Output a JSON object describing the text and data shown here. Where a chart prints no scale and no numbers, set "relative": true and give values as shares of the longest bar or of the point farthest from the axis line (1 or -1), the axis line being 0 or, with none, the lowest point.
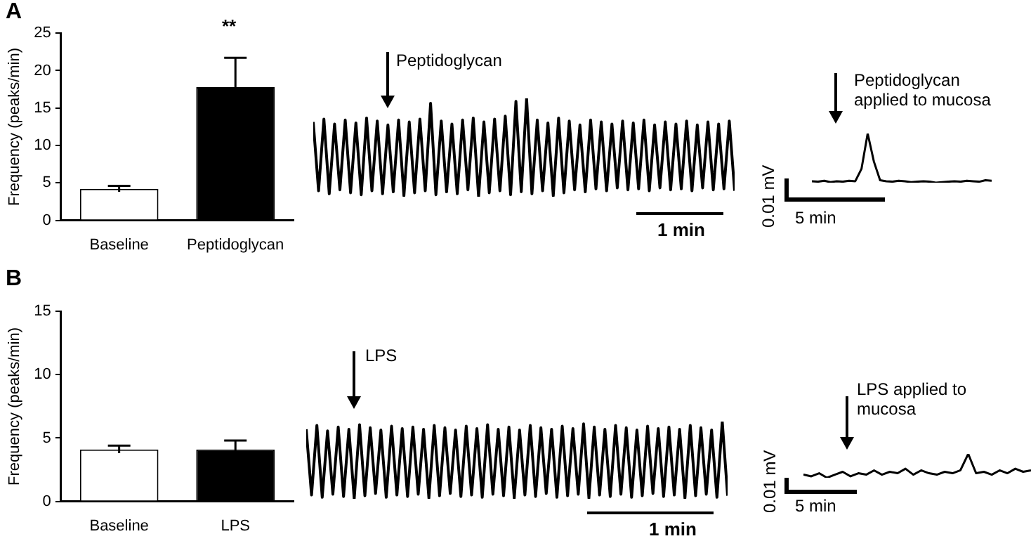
{
  "chart_data": [
    {
      "type": "bar",
      "title": "A",
      "ylabel": "Frequency (peaks/min)",
      "categories": [
        "Baseline",
        "Peptidoglycan"
      ],
      "values": [
        4.2,
        17.8
      ],
      "errors": [
        0.4,
        3.9
      ],
      "colors": [
        "#ffffff",
        "#000000"
      ],
      "ylim": [
        0,
        25
      ],
      "yticks": [
        0,
        5,
        10,
        15,
        20,
        25
      ],
      "annotations": [
        "**"
      ]
    },
    {
      "type": "line",
      "relative": true,
      "categories": [
        null,
        null,
        null,
        null,
        null,
        null,
        null,
        null,
        null,
        null,
        null,
        null,
        null,
        null,
        null,
        null,
        null,
        null,
        null,
        null,
        null,
        null,
        null,
        null,
        null,
        null,
        null,
        null,
        null,
        null,
        null,
        null,
        null,
        null,
        null,
        null,
        null,
        null,
        null,
        null,
        null,
        null,
        null,
        null,
        null,
        null,
        null,
        null,
        null,
        null,
        null,
        null,
        null,
        null,
        null,
        null,
        null,
        null,
        null,
        null,
        null,
        null,
        null,
        null,
        null,
        null,
        null,
        null,
        null,
        null,
        null,
        null,
        null,
        null,
        null,
        null,
        null,
        null,
        null,
        null
      ],
      "series": [
        {
          "color": "#000000",
          "values": [
            0.76,
            0.06,
            0.79,
            0.03,
            0.74,
            0.07,
            0.78,
            0.04,
            0.75,
            0.02,
            0.8,
            0.06,
            0.77,
            0.03,
            0.73,
            0.05,
            0.78,
            0.01,
            0.76,
            0.04,
            0.79,
            0.06,
            0.95,
            0.02,
            0.77,
            0.05,
            0.74,
            0.03,
            0.78,
            0.07,
            0.8,
            0,
            0.76,
            0.04,
            0.79,
            0.06,
            0.82,
            0.02,
            0.97,
            0.05,
            1,
            0.03,
            0.78,
            0.06,
            0.75,
            0.01,
            0.8,
            0.04,
            0.77,
            0.07,
            0.73,
            0.05,
            0.78,
            0.08,
            0.76,
            0.06,
            0.74,
            0.09,
            0.77,
            0.07,
            0.75,
            0.08,
            0.78,
            0.06,
            0.73,
            0.09,
            0.76,
            0.07,
            0.74,
            0.08,
            0.77,
            0.06,
            0.73,
            0.09,
            0.76,
            0.07,
            0.74,
            0.08,
            0.77,
            0.06
          ]
        }
      ],
      "annotations": [
        "Peptidoglycan",
        "1 min"
      ]
    },
    {
      "type": "line",
      "relative": true,
      "categories": [
        null,
        null,
        null,
        null,
        null,
        null,
        null,
        null,
        null,
        null,
        null,
        null,
        null,
        null,
        null,
        null,
        null,
        null,
        null,
        null,
        null,
        null,
        null,
        null,
        null,
        null,
        null,
        null,
        null,
        null
      ],
      "series": [
        {
          "color": "#000000",
          "values": [
            0.03,
            0.02,
            0.04,
            0.01,
            0.03,
            0.02,
            0.04,
            0.03,
            0.28,
            1,
            0.43,
            0.05,
            0.03,
            0.02,
            0.04,
            0.03,
            0.01,
            0.02,
            0.03,
            0.02,
            0,
            0.01,
            0.02,
            0.03,
            0.02,
            0.04,
            0.03,
            0.02,
            0.05,
            0.04
          ]
        }
      ],
      "annotations": [
        "Peptidoglycan applied to mucosa",
        "0.01 mV",
        "5 min"
      ]
    },
    {
      "type": "bar",
      "title": "B",
      "ylabel": "Frequency (peaks/min)",
      "categories": [
        "Baseline",
        "LPS"
      ],
      "values": [
        4.1,
        4.1
      ],
      "errors": [
        0.3,
        0.7
      ],
      "colors": [
        "#ffffff",
        "#000000"
      ],
      "ylim": [
        0,
        15
      ],
      "yticks": [
        0,
        5,
        10,
        15
      ]
    },
    {
      "type": "line",
      "relative": true,
      "categories": [
        null,
        null,
        null,
        null,
        null,
        null,
        null,
        null,
        null,
        null,
        null,
        null,
        null,
        null,
        null,
        null,
        null,
        null,
        null,
        null,
        null,
        null,
        null,
        null,
        null,
        null,
        null,
        null,
        null,
        null,
        null,
        null,
        null,
        null,
        null,
        null,
        null,
        null,
        null,
        null,
        null,
        null,
        null,
        null,
        null,
        null,
        null,
        null,
        null,
        null,
        null,
        null,
        null,
        null,
        null,
        null,
        null,
        null,
        null,
        null,
        null,
        null,
        null,
        null,
        null,
        null,
        null,
        null,
        null,
        null,
        null,
        null,
        null,
        null,
        null,
        null,
        null,
        null,
        null,
        null
      ],
      "series": [
        {
          "color": "#000000",
          "values": [
            0.9,
            0.05,
            0.95,
            0.02,
            0.88,
            0.06,
            0.93,
            0.03,
            0.9,
            0,
            0.96,
            0.04,
            0.92,
            0.07,
            0.89,
            0.02,
            0.94,
            0.05,
            0.91,
            0.03,
            0.93,
            0.06,
            0.9,
            0.01,
            0.95,
            0.04,
            0.92,
            0.07,
            0.89,
            0.03,
            0.94,
            0.05,
            0.91,
            0.02,
            0.96,
            0.06,
            0.9,
            0.04,
            0.93,
            0.01,
            0.89,
            0.05,
            0.95,
            0.03,
            0.92,
            0.07,
            0.9,
            0.02,
            0.94,
            0.04,
            0.91,
            0.06,
            0.97,
            0.01,
            0.93,
            0.05,
            0.9,
            0.03,
            0.95,
            0.06,
            0.92,
            0.02,
            0.89,
            0.04,
            0.94,
            0.07,
            0.91,
            0.03,
            0.93,
            0.05,
            0.9,
            0.01,
            0.95,
            0.04,
            0.92,
            0.06,
            0.89,
            0.02,
            1,
            0.04
          ]
        }
      ],
      "annotations": [
        "LPS",
        "1 min"
      ]
    },
    {
      "type": "line",
      "relative": true,
      "categories": [
        null,
        null,
        null,
        null,
        null,
        null,
        null,
        null,
        null,
        null,
        null,
        null,
        null,
        null,
        null,
        null,
        null,
        null,
        null,
        null,
        null,
        null,
        null,
        null,
        null,
        null,
        null,
        null,
        null,
        null
      ],
      "series": [
        {
          "color": "#000000",
          "values": [
            0.13,
            0.06,
            0.19,
            0,
            0.13,
            0.25,
            0.06,
            0.19,
            0.13,
            0.31,
            0.13,
            0.25,
            0.19,
            0.38,
            0.13,
            0.31,
            0.19,
            0.13,
            0.25,
            0.19,
            0.31,
            1,
            0.19,
            0.25,
            0.13,
            0.31,
            0.19,
            0.38,
            0.25,
            0.31
          ]
        }
      ],
      "annotations": [
        "LPS applied to mucosa",
        "0.01 mV",
        "5 min"
      ]
    }
  ]
}
